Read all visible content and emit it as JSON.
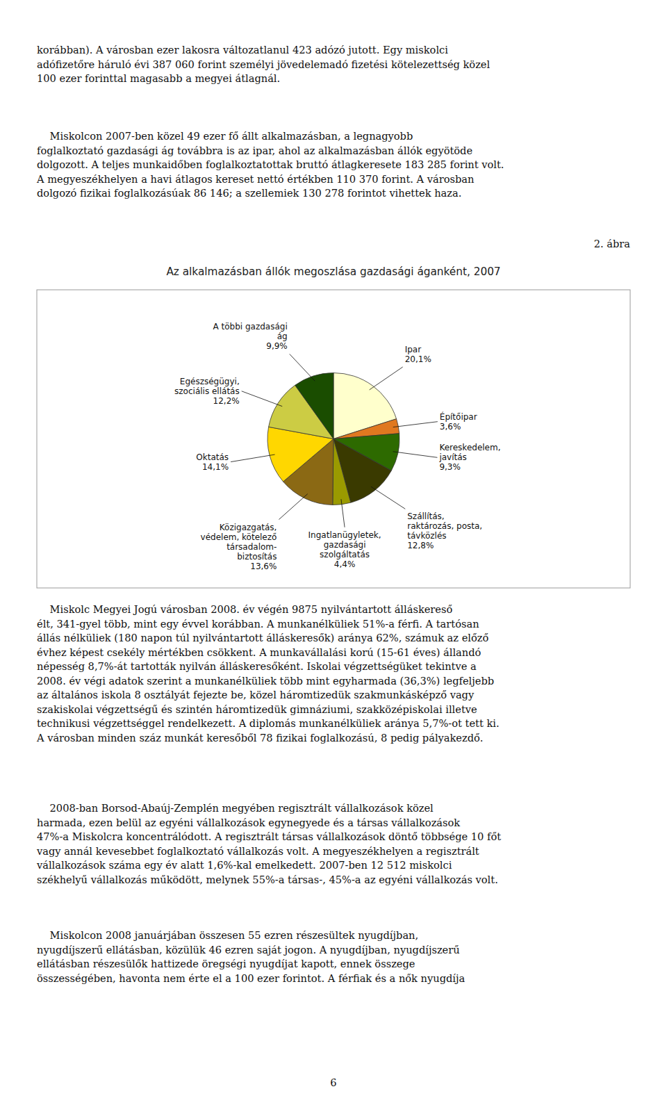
{
  "text_before": [
    "korábban). A városban ezer lakosra változatlanul 423 adózó jutott. Egy miskolci\nadófizetőre háruló évi 387 060 forint személyi jövedelemadó fizetési kötelezettség közel\n100 ezer forinttal magasabb a megyei átlagnál.",
    "    Miskolcon 2007-ben közel 49 ezer fő állt alkalmazásban, a legnagyobb\nfoglalkoztató gazdasági ág továbbra is az ipar, ahol az alkalmazásban állók egyötöde\ndolgozott. A teljes munkaidőben foglalkoztatottak bruttó átlagkeresete 183 285 forint volt.\nA megyeszékhelyen a havi átlagos kereset nettó értékben 110 370 forint. A városban\ndolgozó fizikai foglalkozásúak 86 146; a szellemiek 130 278 forintot vihettek haza."
  ],
  "figure_label": "2. ábra",
  "chart_data": {
    "type": "pie",
    "title": "Az alkalmazásban állók megoszlása gazdasági áganként, 2007",
    "categories": [
      "Ipar",
      "Építőipar",
      "Kereskedelem,\njavítás",
      "Szállítás,\nraktározás, posta,\ntávközlés",
      "Ingatlanügyletek,\ngazdasági\nszolgáltatás",
      "Közigazgatás,\nvédelem, kötelező\ntársadalom-\nbiztosítás",
      "Oktatás",
      "Egészségügyi,\nszociális ellátás",
      "A többi gazdasági\nág"
    ],
    "values": [
      20.1,
      3.6,
      9.3,
      12.8,
      4.4,
      13.6,
      14.1,
      12.2,
      9.9
    ],
    "value_labels": [
      "20,1%",
      "3,6%",
      "9,3%",
      "12,8%",
      "4,4%",
      "13,6%",
      "14,1%",
      "12,2%",
      "9,9%"
    ],
    "colors": [
      "#FFFFCC",
      "#E07820",
      "#2D6A00",
      "#3A3A00",
      "#9A9A00",
      "#8B6914",
      "#FFD700",
      "#CCCC44",
      "#1A4D00"
    ],
    "data_labels": true
  },
  "text_after": [
    "    Miskolc Megyei Jogú városban 2008. év végén 9875 nyilvántartott álláskereső\nélt, 341-gyel több, mint egy évvel korábban. A munkanélküliek 51%-a férfi. A tartósan\nállás nélküliek (180 napon túl nyilvántartott álláskeresők) aránya 62%, számuk az előző\névhez képest csekély mértékben csökkent. A munkavállalási korú (15-61 éves) állandó\nnépesség 8,7%-át tartották nyilván álláskeresőként. Iskolai végzettségüket tekintve a\n2008. év végi adatok szerint a munkanélküliek több mint egyharmada (36,3%) legfeljebb\naz általános iskola 8 osztályát fejezte be, közel háromtizedük szakmunkásképző vagy\nszakiskolai végzettségű és szintén háromtizedük gimnáziumi, szakközépiskolai illetve\ntechnikusi végzettséggel rendelkezett. A diplomás munkanélküliek aránya 5,7%-ot tett ki.\nA városban minden száz munkát keresőből 78 fizikai foglalkozású, 8 pedig pályakezdő.",
    "    2008-ban Borsod-Abaúj-Zemplén megyében regisztrált vállalkozások közel\nharmada, ezen belül az egyéni vállalkozások egynegyede és a társas vállalkozások\n47%-a Miskolcra koncentrálódott. A regisztrált társas vállalkozások döntő többsége 10 főt\nvagy annál kevesebbet foglalkoztató vállalkozás volt. A megyeszékhelyen a regisztrált\nvállalkozások száma egy év alatt 1,6%-kal emelkedett. 2007-ben 12 512 miskolci\nszékhelyű vállalkozás működött, melynek 55%-a társas-, 45%-a az egyéni vállalkozás volt.",
    "    Miskolcon 2008 januárjában összesen 55 ezren részesültek nyugdíjban,\nnyugdíjszerű ellátásban, közülük 46 ezren saját jogon. A nyugdíjban, nyugdíjszerű\nellátásban részesülők hattizede öregségi nyugdíjat kapott, ennek összege\nösszességében, havonta nem érte el a 100 ezer forintot. A férfiak és a nők nyugdíja"
  ],
  "page_number": "6"
}
